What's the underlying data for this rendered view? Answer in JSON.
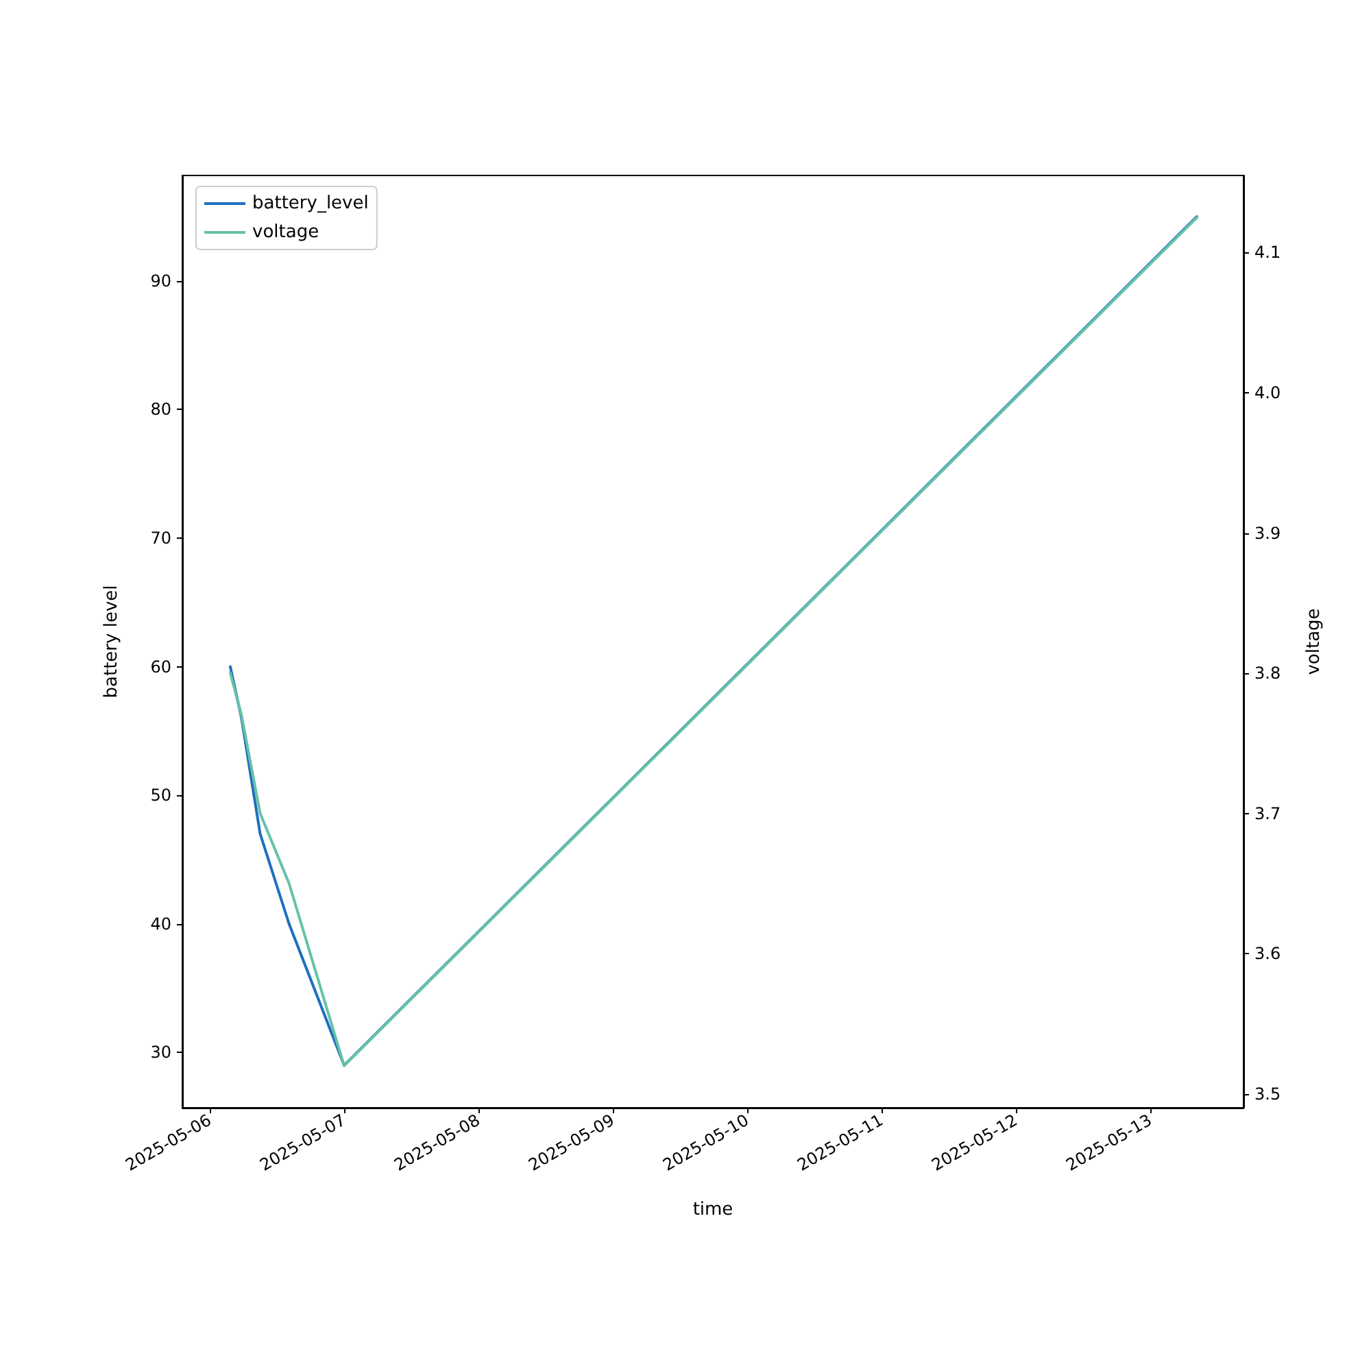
{
  "chart_data": {
    "type": "line",
    "xlabel": "time",
    "ylabel": "battery level",
    "y2label": "voltage",
    "x": [
      "2025-05-06T03:40",
      "2025-05-06T05:40",
      "2025-05-06T09:00",
      "2025-05-06T14:10",
      "2025-05-07T00:00",
      "2025-05-13T08:20"
    ],
    "series": [
      {
        "name": "battery_level",
        "color": "#1f6fbf",
        "values": [
          60,
          56,
          47,
          40,
          29,
          95
        ]
      },
      {
        "name": "voltage",
        "color": "#66c2a5",
        "axis": "y2",
        "values": [
          3.8,
          3.77,
          3.7,
          3.65,
          3.52,
          4.125
        ]
      }
    ],
    "xlim": [
      "2025-05-05T19:06",
      "2025-05-13T16:40"
    ],
    "xticks": [
      "2025-05-06",
      "2025-05-07",
      "2025-05-08",
      "2025-05-09",
      "2025-05-10",
      "2025-05-11",
      "2025-05-12",
      "2025-05-13"
    ],
    "ylim": [
      25.7,
      98.2
    ],
    "yticks": [
      30,
      40,
      50,
      60,
      70,
      80,
      90
    ],
    "y2lim": [
      3.49,
      4.155
    ],
    "y2ticks": [
      3.5,
      3.6,
      3.7,
      3.8,
      3.9,
      {
        "value": 4.0,
        "label": "4.0"
      },
      4.1
    ],
    "legend": "top left",
    "grid": false,
    "marker": "none",
    "line_style": "solid"
  }
}
